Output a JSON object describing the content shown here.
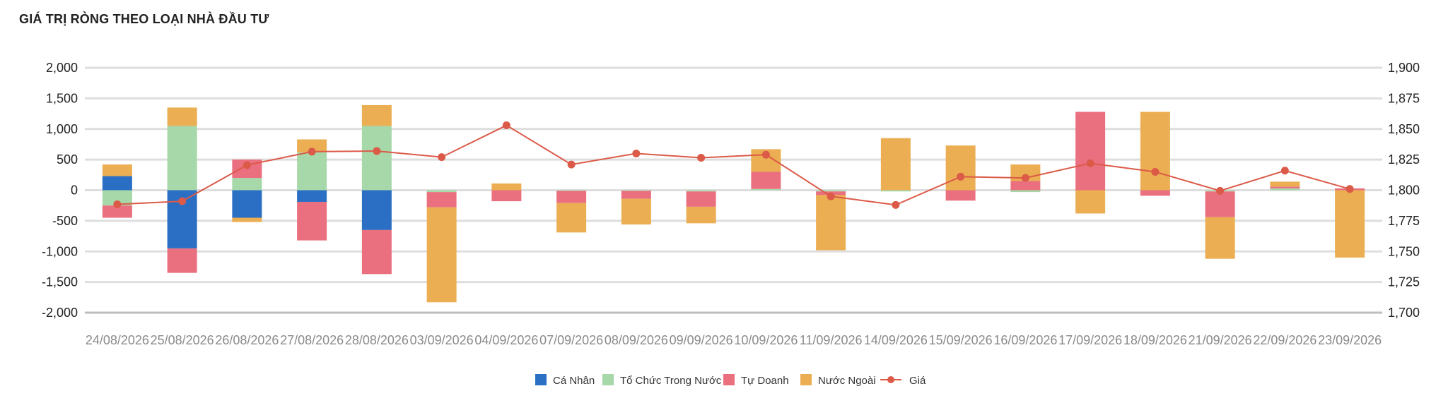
{
  "title": "GIÁ TRỊ RÒNG THEO LOẠI NHÀ ĐẦU TƯ",
  "chart_data": {
    "type": "bar",
    "stacked": true,
    "categories": [
      "24/08/2026",
      "25/08/2026",
      "26/08/2026",
      "27/08/2026",
      "28/08/2026",
      "03/09/2026",
      "04/09/2026",
      "07/09/2026",
      "08/09/2026",
      "09/09/2026",
      "10/09/2026",
      "11/09/2026",
      "14/09/2026",
      "15/09/2026",
      "16/09/2026",
      "17/09/2026",
      "18/09/2026",
      "21/09/2026",
      "22/09/2026",
      "23/09/2026"
    ],
    "series": [
      {
        "name": "Cá Nhân",
        "color": "#2a6fc4",
        "type": "bar",
        "values": [
          230,
          -950,
          -450,
          -190,
          -650,
          0,
          0,
          0,
          0,
          0,
          0,
          0,
          0,
          0,
          0,
          0,
          0,
          0,
          0,
          0
        ]
      },
      {
        "name": "Tổ Chức Trong Nước",
        "color": "#a7d8a9",
        "type": "bar",
        "values": [
          -250,
          1050,
          200,
          620,
          1050,
          -30,
          0,
          -10,
          -10,
          -20,
          20,
          -20,
          -20,
          0,
          -30,
          0,
          0,
          -20,
          30,
          0
        ]
      },
      {
        "name": "Tự Doanh",
        "color": "#ea7080",
        "type": "bar",
        "values": [
          -200,
          -400,
          300,
          -630,
          -720,
          -250,
          -180,
          -200,
          -130,
          -250,
          280,
          -60,
          0,
          -170,
          150,
          1280,
          -90,
          -420,
          30,
          30
        ]
      },
      {
        "name": "Nước Ngoài",
        "color": "#ebae52",
        "type": "bar",
        "values": [
          190,
          300,
          -70,
          210,
          340,
          -1550,
          110,
          -480,
          -420,
          -270,
          370,
          -900,
          850,
          730,
          270,
          -380,
          1280,
          -680,
          80,
          -1100
        ]
      },
      {
        "name": "Giá",
        "color": "#dc5a48",
        "type": "line",
        "axis": "right",
        "values": [
          1788.5,
          1791,
          1820.5,
          1831.5,
          1832,
          1827,
          1853,
          1821,
          1830,
          1826.5,
          1829,
          1795,
          1788,
          1811,
          1810,
          1822,
          1815,
          1799.5,
          1816,
          1801
        ]
      }
    ],
    "yticks_left": [
      "2,000",
      "1,500",
      "1,000",
      "500",
      "0",
      "-500",
      "-1,000",
      "-1,500",
      "-2,000"
    ],
    "yticks_right": [
      "1,900",
      "1,875",
      "1,850",
      "1,825",
      "1,800",
      "1,775",
      "1,750",
      "1,725",
      "1,700"
    ],
    "ylim_left": [
      -2000,
      2000
    ],
    "ylim_right": [
      1700,
      1900
    ],
    "grid": true,
    "legend_position": "bottom"
  }
}
